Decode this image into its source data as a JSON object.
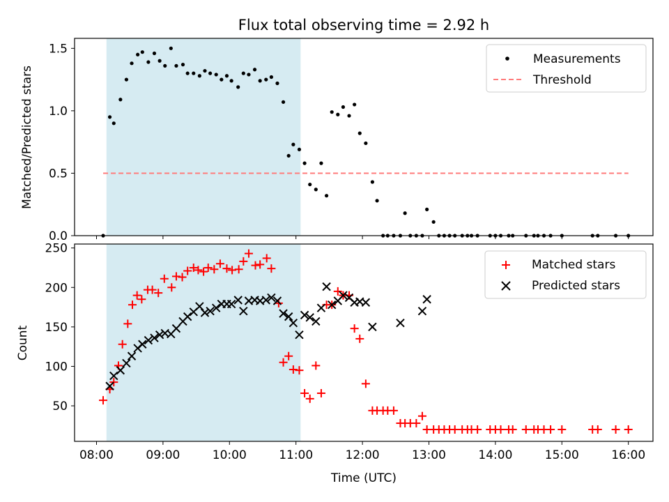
{
  "chart_data": {
    "title": "Flux total observing time = 2.92 h",
    "xlabel": "Time (UTC)",
    "x_ticks": [
      "08:00",
      "09:00",
      "10:00",
      "11:00",
      "12:00",
      "13:00",
      "14:00",
      "15:00",
      "16:00"
    ],
    "x_range_hours": [
      7.67,
      16.37
    ],
    "shaded_region_hours": [
      8.15,
      11.07
    ],
    "panels": [
      {
        "type": "scatter",
        "ylabel": "Matched/Predicted stars",
        "ylim": [
          0,
          1.58
        ],
        "y_ticks": [
          "0.0",
          "0.5",
          "1.0",
          "1.5"
        ],
        "legend_position": "top-right",
        "threshold": {
          "name": "Threshold",
          "value": 0.5,
          "x_range": [
            8.1,
            16.0
          ],
          "color": "#ff7b7b"
        },
        "series": [
          {
            "name": "Measurements",
            "color": "#000000",
            "x": [
              8.1,
              8.2,
              8.26,
              8.36,
              8.45,
              8.53,
              8.62,
              8.69,
              8.78,
              8.87,
              8.95,
              9.03,
              9.12,
              9.2,
              9.3,
              9.37,
              9.46,
              9.55,
              9.63,
              9.71,
              9.8,
              9.88,
              9.96,
              10.03,
              10.13,
              10.21,
              10.29,
              10.38,
              10.46,
              10.55,
              10.63,
              10.72,
              10.81,
              10.89,
              10.96,
              11.05,
              11.13,
              11.21,
              11.3,
              11.38,
              11.46,
              11.54,
              11.63,
              11.71,
              11.8,
              11.88,
              11.96,
              12.05,
              12.15,
              12.22,
              12.31,
              12.38,
              12.47,
              12.57,
              12.64,
              12.72,
              12.81,
              12.9,
              12.97,
              13.07,
              13.15,
              13.23,
              13.31,
              13.39,
              13.5,
              13.58,
              13.64,
              13.73,
              13.92,
              14.0,
              14.08,
              14.2,
              14.26,
              14.46,
              14.58,
              14.64,
              14.73,
              14.83,
              15.0,
              15.46,
              15.54,
              15.81,
              16.0
            ],
            "y": [
              0.0,
              0.95,
              0.9,
              1.09,
              1.25,
              1.38,
              1.45,
              1.47,
              1.39,
              1.46,
              1.4,
              1.36,
              1.5,
              1.36,
              1.37,
              1.3,
              1.3,
              1.28,
              1.32,
              1.3,
              1.29,
              1.25,
              1.28,
              1.24,
              1.19,
              1.3,
              1.29,
              1.33,
              1.24,
              1.25,
              1.27,
              1.22,
              1.07,
              0.64,
              0.73,
              0.69,
              0.58,
              0.41,
              0.37,
              0.58,
              0.32,
              0.99,
              0.97,
              1.03,
              0.96,
              1.05,
              0.82,
              0.74,
              0.43,
              0.28,
              0.0,
              0.0,
              0.0,
              0.0,
              0.18,
              0.0,
              0.0,
              0.0,
              0.21,
              0.11,
              0.0,
              0.0,
              0.0,
              0.0,
              0.0,
              0.0,
              0.0,
              0.0,
              0.0,
              0.0,
              0.0,
              0.0,
              0.0,
              0.0,
              0.0,
              0.0,
              0.0,
              0.0,
              0.0,
              0.0,
              0.0,
              0.0,
              0.0
            ]
          }
        ]
      },
      {
        "type": "scatter",
        "ylabel": "Count",
        "ylim": [
          5,
          255
        ],
        "y_ticks": [
          "50",
          "100",
          "150",
          "200",
          "250"
        ],
        "legend_position": "top-right",
        "series": [
          {
            "name": "Matched stars",
            "color": "#ff0000",
            "marker": "+",
            "x": [
              8.1,
              8.2,
              8.26,
              8.33,
              8.39,
              8.47,
              8.54,
              8.61,
              8.68,
              8.77,
              8.84,
              8.93,
              9.02,
              9.13,
              9.2,
              9.29,
              9.37,
              9.46,
              9.53,
              9.61,
              9.68,
              9.77,
              9.86,
              9.96,
              10.04,
              10.14,
              10.21,
              10.29,
              10.39,
              10.46,
              10.56,
              10.63,
              10.74,
              10.81,
              10.89,
              10.96,
              11.05,
              11.13,
              11.21,
              11.3,
              11.38,
              11.46,
              11.54,
              11.63,
              11.71,
              11.8,
              11.88,
              11.96,
              12.05,
              12.15,
              12.22,
              12.31,
              12.38,
              12.47,
              12.57,
              12.64,
              12.72,
              12.81,
              12.9,
              12.97,
              13.07,
              13.15,
              13.23,
              13.31,
              13.39,
              13.5,
              13.58,
              13.64,
              13.73,
              13.92,
              14.0,
              14.08,
              14.2,
              14.26,
              14.46,
              14.58,
              14.64,
              14.73,
              14.83,
              15.0,
              15.46,
              15.54,
              15.81,
              16.0
            ],
            "y": [
              57,
              71,
              80,
              101,
              128,
              154,
              178,
              190,
              185,
              197,
              197,
              193,
              211,
              200,
              214,
              213,
              221,
              225,
              222,
              220,
              225,
              223,
              230,
              224,
              222,
              223,
              233,
              243,
              228,
              229,
              237,
              224,
              180,
              105,
              113,
              96,
              95,
              66,
              59,
              101,
              66,
              178,
              178,
              195,
              190,
              190,
              148,
              135,
              78,
              44,
              44,
              44,
              44,
              44,
              28,
              28,
              28,
              28,
              37,
              20,
              20,
              20,
              20,
              20,
              20,
              20,
              20,
              20,
              20,
              20,
              20,
              20,
              20,
              20,
              20,
              20,
              20,
              20,
              20,
              20,
              20,
              20,
              20,
              20
            ]
          },
          {
            "name": "Predicted stars",
            "color": "#000000",
            "marker": "x",
            "x": [
              8.2,
              8.26,
              8.36,
              8.45,
              8.53,
              8.62,
              8.69,
              8.78,
              8.87,
              8.95,
              9.03,
              9.12,
              9.2,
              9.3,
              9.37,
              9.46,
              9.55,
              9.63,
              9.71,
              9.8,
              9.88,
              9.96,
              10.03,
              10.13,
              10.21,
              10.29,
              10.38,
              10.46,
              10.55,
              10.63,
              10.72,
              10.81,
              10.89,
              10.96,
              11.05,
              11.13,
              11.21,
              11.3,
              11.38,
              11.46,
              11.54,
              11.63,
              11.71,
              11.8,
              11.88,
              11.96,
              12.05,
              12.15,
              12.57,
              12.9,
              12.97
            ],
            "y": [
              75,
              88,
              95,
              104,
              113,
              123,
              128,
              133,
              136,
              140,
              142,
              141,
              148,
              157,
              163,
              169,
              176,
              168,
              170,
              174,
              179,
              179,
              179,
              184,
              170,
              183,
              184,
              183,
              184,
              187,
              183,
              167,
              163,
              155,
              140,
              165,
              162,
              157,
              174,
              201,
              178,
              183,
              190,
              187,
              181,
              182,
              181,
              150,
              155,
              170,
              185
            ]
          }
        ]
      }
    ]
  }
}
